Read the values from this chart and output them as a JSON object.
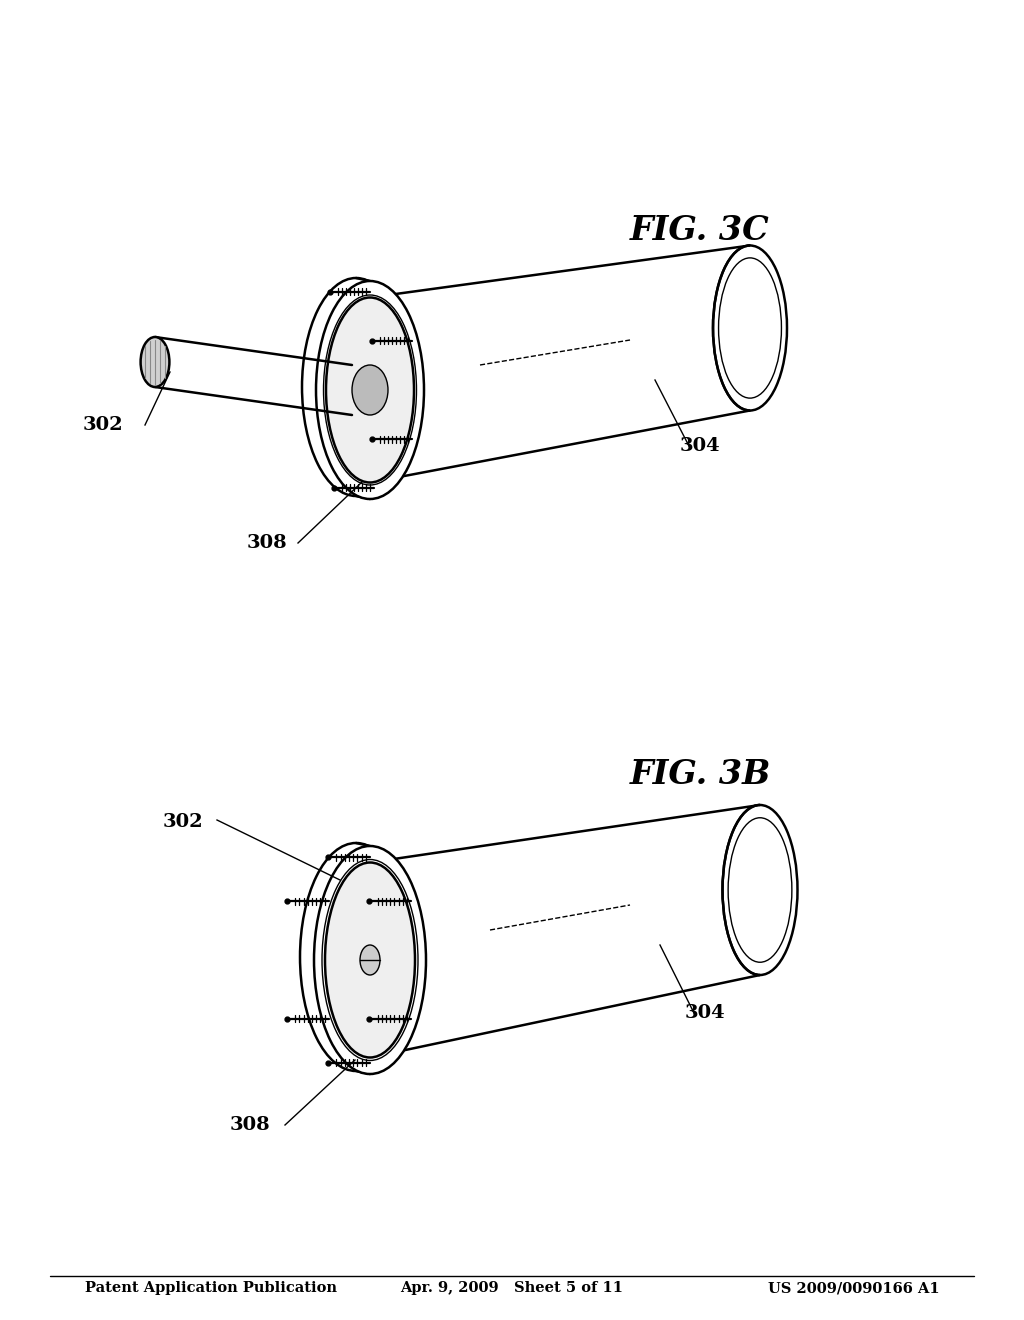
{
  "background_color": "#ffffff",
  "line_color": "#000000",
  "header_left": "Patent Application Publication",
  "header_center": "Apr. 9, 2009   Sheet 5 of 11",
  "header_right": "US 2009/0090166 A1",
  "fig3b_label": "FIG. 3B",
  "fig3c_label": "FIG. 3C",
  "label_302": "302",
  "label_304": "304",
  "label_308": "308"
}
